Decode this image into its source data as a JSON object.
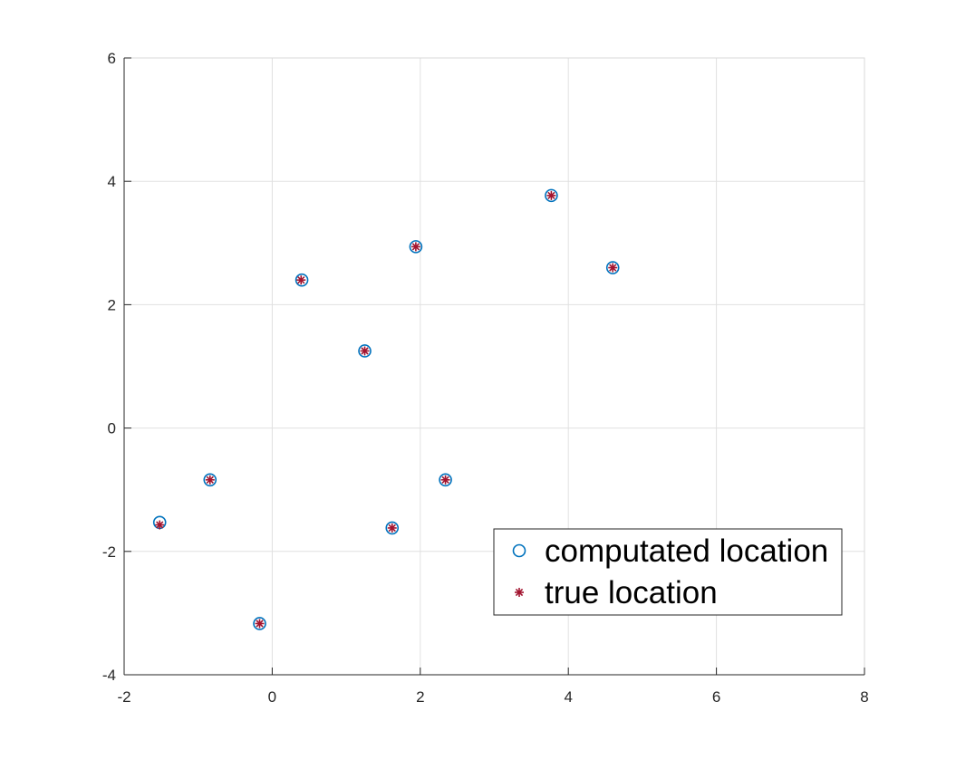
{
  "chart_data": {
    "type": "scatter",
    "title": "",
    "xlabel": "",
    "ylabel": "",
    "xlim": [
      -2,
      8
    ],
    "ylim": [
      -4,
      6
    ],
    "xticks": [
      "-2",
      "0",
      "2",
      "4",
      "6",
      "8"
    ],
    "yticks": [
      "-4",
      "-2",
      "0",
      "2",
      "4",
      "6"
    ],
    "grid": true,
    "legend_position": "bottom-right",
    "series": [
      {
        "name": "computated location",
        "marker": "circle",
        "color": "#0072BD",
        "points": [
          [
            -1.52,
            -1.53
          ],
          [
            -0.84,
            -0.84
          ],
          [
            -0.17,
            -3.17
          ],
          [
            0.4,
            2.4
          ],
          [
            1.25,
            1.25
          ],
          [
            1.62,
            -1.62
          ],
          [
            1.94,
            2.94
          ],
          [
            2.34,
            -0.84
          ],
          [
            3.77,
            3.77
          ],
          [
            4.6,
            2.6
          ]
        ]
      },
      {
        "name": "true location",
        "marker": "asterisk",
        "color": "#A2142F",
        "points": [
          [
            -1.52,
            -1.57
          ],
          [
            -0.84,
            -0.84
          ],
          [
            -0.17,
            -3.17
          ],
          [
            0.39,
            2.4
          ],
          [
            1.25,
            1.25
          ],
          [
            1.62,
            -1.62
          ],
          [
            1.94,
            2.94
          ],
          [
            2.34,
            -0.84
          ],
          [
            3.77,
            3.77
          ],
          [
            4.6,
            2.6
          ]
        ]
      }
    ]
  }
}
